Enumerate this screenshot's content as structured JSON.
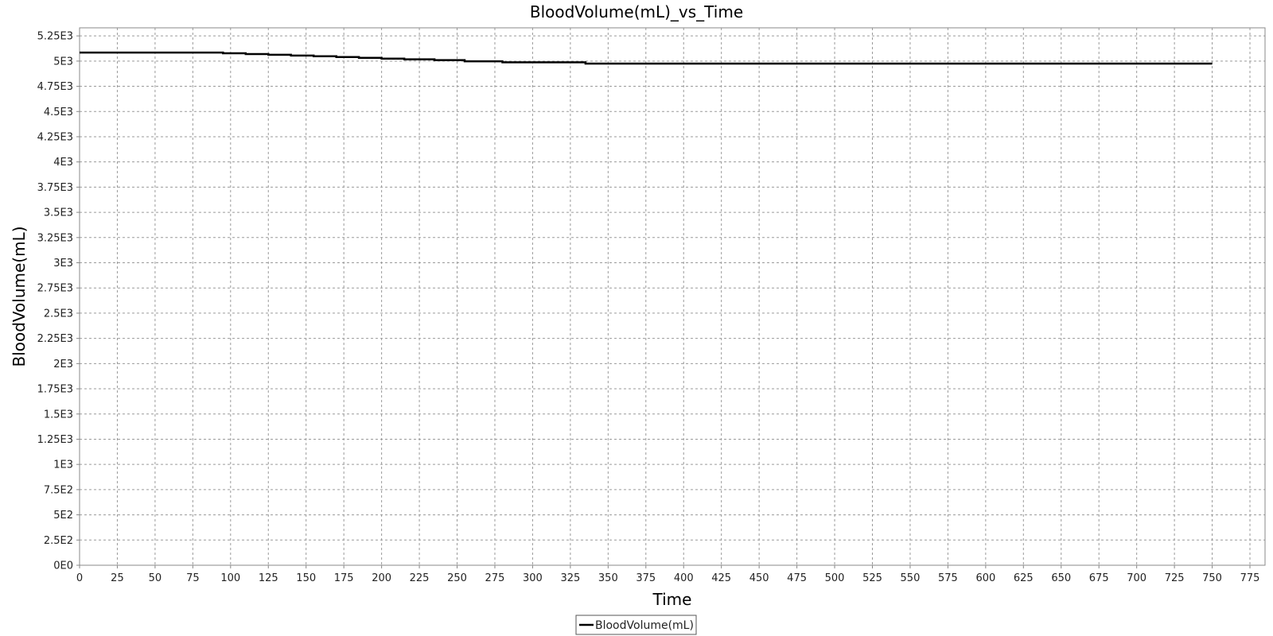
{
  "chart_data": {
    "type": "line",
    "title": "BloodVolume(mL)_vs_Time",
    "xlabel": "Time",
    "ylabel": "BloodVolume(mL)",
    "xlim": [
      0,
      785
    ],
    "ylim": [
      0,
      5330
    ],
    "x_ticks": [
      0,
      25,
      50,
      75,
      100,
      125,
      150,
      175,
      200,
      225,
      250,
      275,
      300,
      325,
      350,
      375,
      400,
      425,
      450,
      475,
      500,
      525,
      550,
      575,
      600,
      625,
      650,
      675,
      700,
      725,
      750,
      775
    ],
    "x_tick_labels": [
      "0",
      "25",
      "50",
      "75",
      "100",
      "125",
      "150",
      "175",
      "200",
      "225",
      "250",
      "275",
      "300",
      "325",
      "350",
      "375",
      "400",
      "425",
      "450",
      "475",
      "500",
      "525",
      "550",
      "575",
      "600",
      "625",
      "650",
      "675",
      "700",
      "725",
      "750",
      "775"
    ],
    "y_ticks": [
      0,
      250,
      500,
      750,
      1000,
      1250,
      1500,
      1750,
      2000,
      2250,
      2500,
      2750,
      3000,
      3250,
      3500,
      3750,
      4000,
      4250,
      4500,
      4750,
      5000,
      5250
    ],
    "y_tick_labels": [
      "0E0",
      "2.5E2",
      "5E2",
      "7.5E2",
      "1E3",
      "1.25E3",
      "1.5E3",
      "1.75E3",
      "2E3",
      "2.25E3",
      "2.5E3",
      "2.75E3",
      "3E3",
      "3.25E3",
      "3.5E3",
      "3.75E3",
      "4E3",
      "4.25E3",
      "4.5E3",
      "4.75E3",
      "5E3",
      "5.25E3"
    ],
    "grid": true,
    "legend_position": "bottom-center",
    "step": true,
    "series": [
      {
        "name": "BloodVolume(mL)",
        "color": "#000000",
        "x": [
          0,
          95,
          110,
          125,
          140,
          155,
          170,
          185,
          200,
          215,
          235,
          255,
          280,
          335,
          750
        ],
        "y": [
          5085,
          5078,
          5070,
          5063,
          5055,
          5048,
          5040,
          5032,
          5025,
          5018,
          5010,
          4998,
          4988,
          4975,
          4975
        ]
      }
    ]
  }
}
